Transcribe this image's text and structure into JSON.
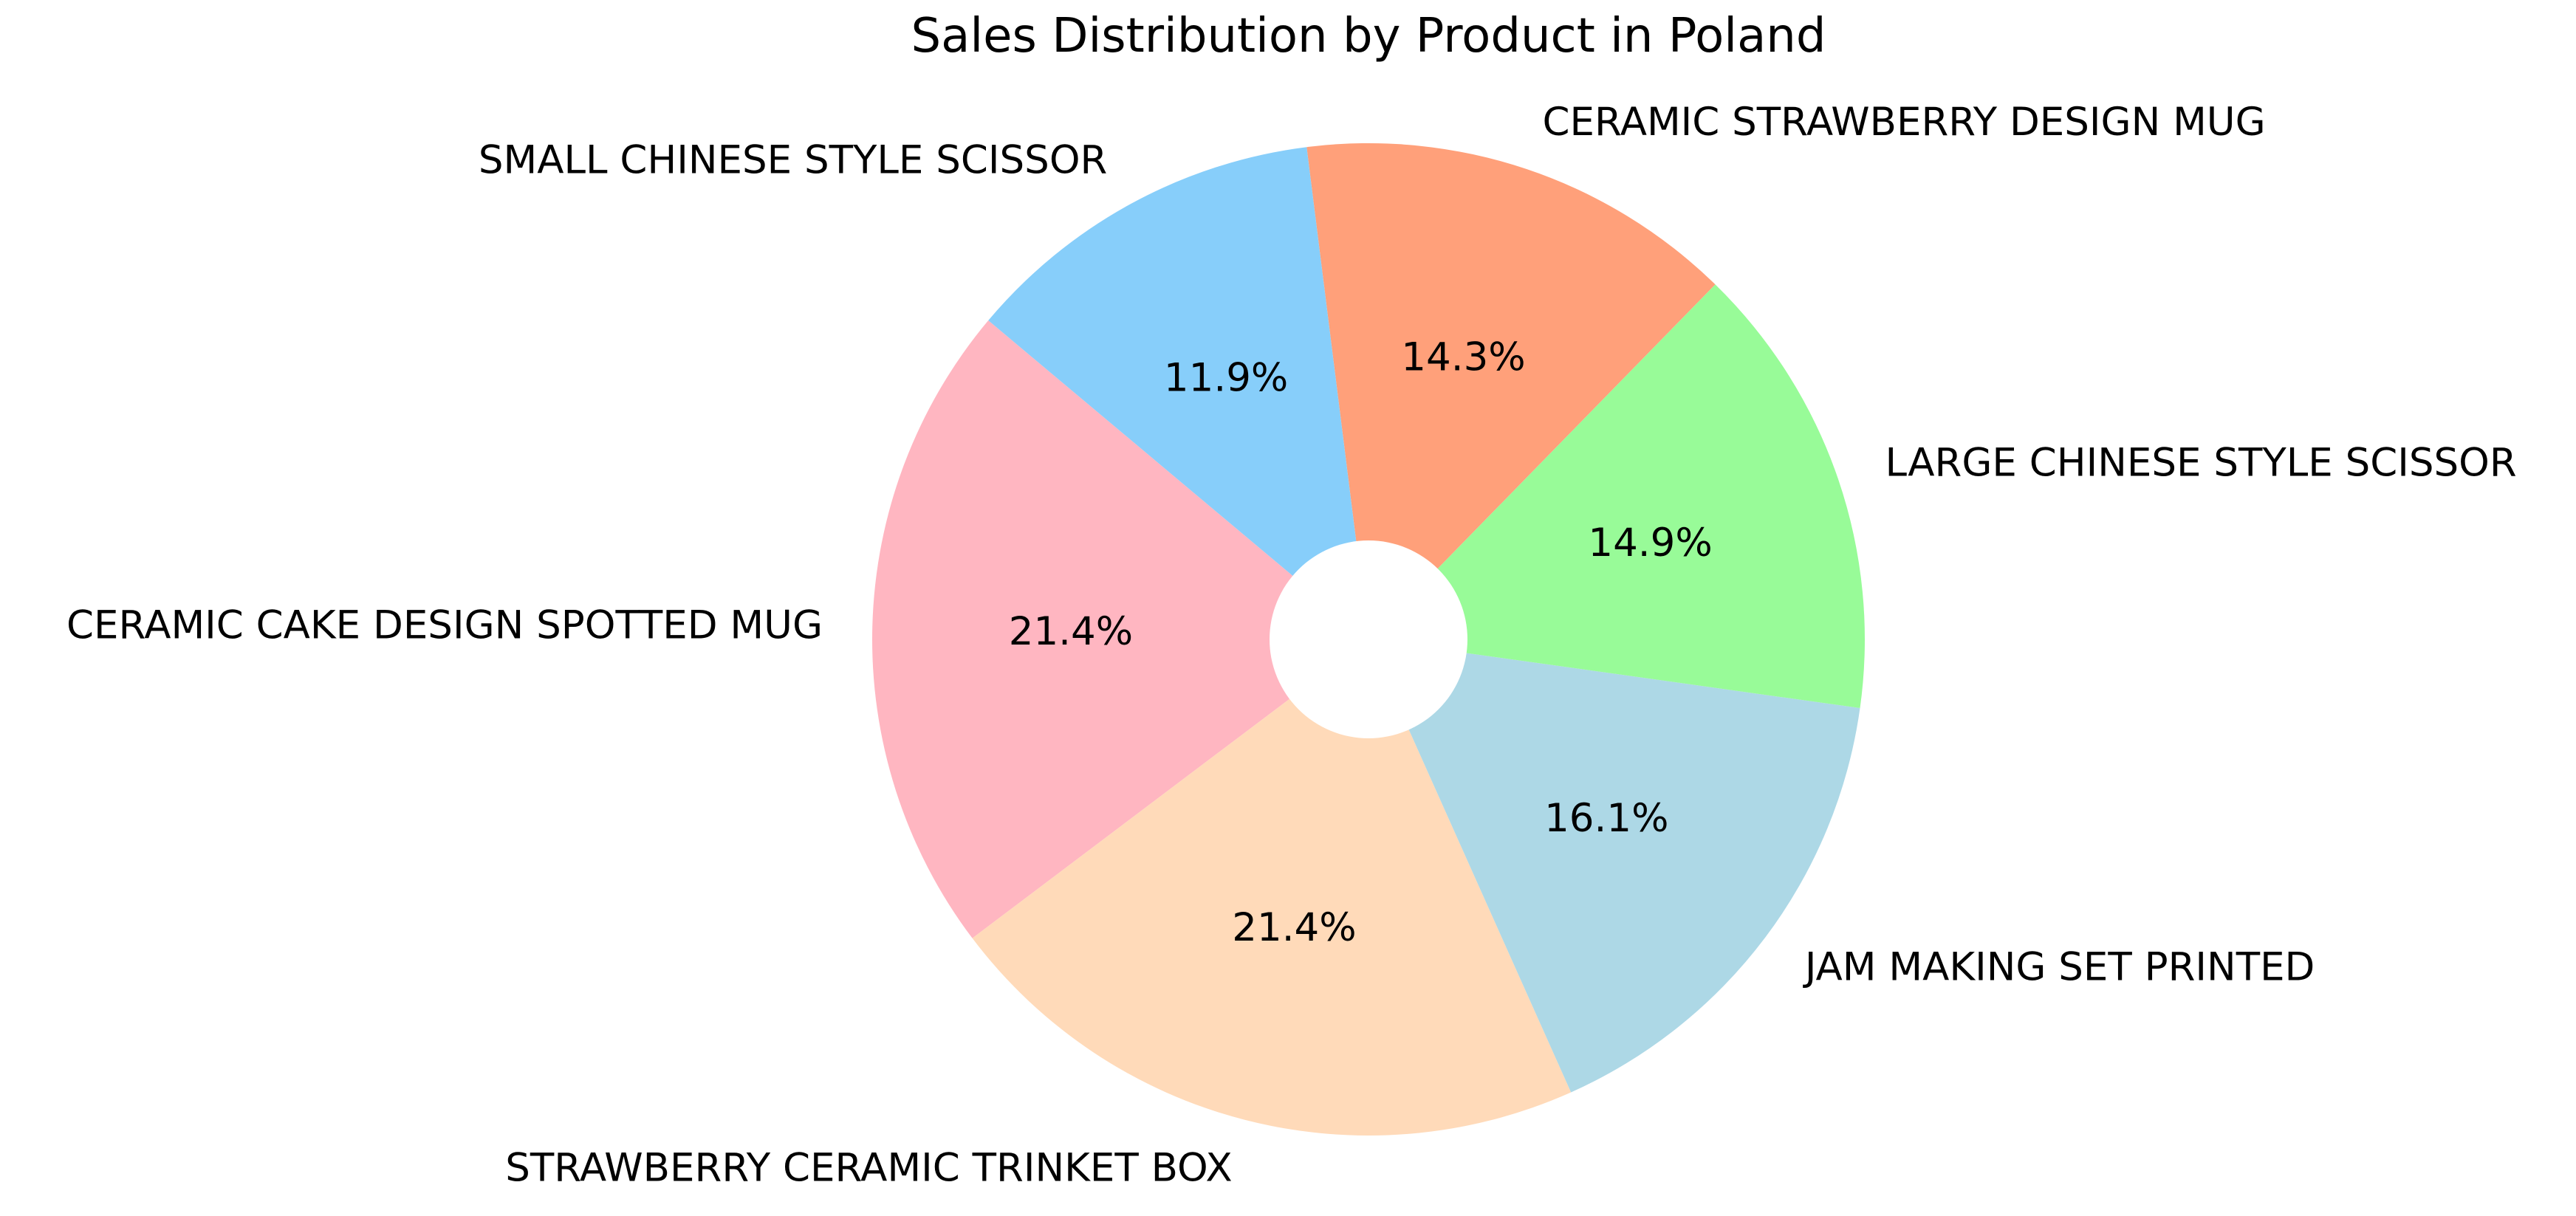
{
  "chart_data": {
    "type": "pie",
    "title": "Sales Distribution by Product in Poland",
    "donut": true,
    "start_angle_deg": 140,
    "direction": "counterclockwise",
    "slices": [
      {
        "label": "CERAMIC CAKE DESIGN SPOTTED MUG",
        "value": 21.4,
        "display": "21.4%",
        "color": "#ffb6c1"
      },
      {
        "label": "STRAWBERRY CERAMIC TRINKET BOX",
        "value": 21.4,
        "display": "21.4%",
        "color": "#ffdab9"
      },
      {
        "label": "JAM MAKING SET PRINTED",
        "value": 16.1,
        "display": "16.1%",
        "color": "#add8e6"
      },
      {
        "label": "LARGE CHINESE STYLE SCISSOR",
        "value": 14.9,
        "display": "14.9%",
        "color": "#98fb98"
      },
      {
        "label": "CERAMIC STRAWBERRY DESIGN MUG",
        "value": 14.3,
        "display": "14.3%",
        "color": "#ffa07a"
      },
      {
        "label": "SMALL CHINESE STYLE SCISSOR",
        "value": 11.9,
        "display": "11.9%",
        "color": "#87cefa"
      }
    ]
  }
}
